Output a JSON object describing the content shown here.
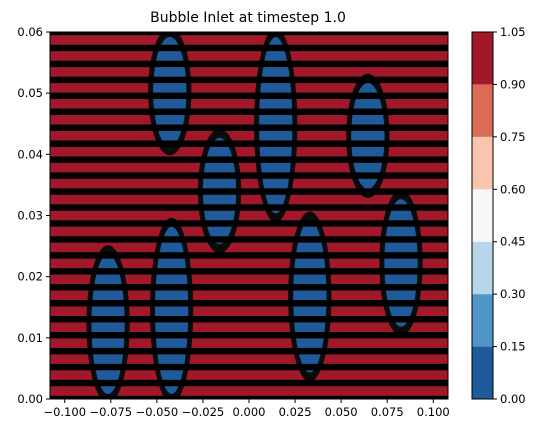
{
  "chart_data": {
    "type": "contourf",
    "title": "Bubble Inlet at timestep 1.0",
    "xlabel": "",
    "ylabel": "",
    "xlim": [
      -0.108,
      0.108
    ],
    "ylim": [
      0,
      0.06
    ],
    "x_ticks": [
      "−0.100",
      "−0.075",
      "−0.050",
      "−0.025",
      "0.000",
      "0.025",
      "0.050",
      "0.075",
      "0.100"
    ],
    "x_tick_values": [
      -0.1,
      -0.075,
      -0.05,
      -0.025,
      0.0,
      0.025,
      0.05,
      0.075,
      0.1
    ],
    "y_ticks": [
      "0.00",
      "0.01",
      "0.02",
      "0.03",
      "0.04",
      "0.05",
      "0.06"
    ],
    "y_tick_values": [
      0.0,
      0.01,
      0.02,
      0.03,
      0.04,
      0.05,
      0.06
    ],
    "grid": false,
    "colorbar": {
      "levels": [
        0.0,
        0.15,
        0.3,
        0.45,
        0.6,
        0.75,
        0.9,
        1.05
      ],
      "tick_labels": [
        "0.00",
        "0.15",
        "0.30",
        "0.45",
        "0.60",
        "0.75",
        "0.90",
        "1.05"
      ],
      "colors": [
        "#1f5a9a",
        "#4f96c6",
        "#b7d6e9",
        "#f7f7f7",
        "#fac5ad",
        "#dc6b55",
        "#a2182b"
      ]
    },
    "background_value": 1.0,
    "bubble_value": 0.0,
    "background_color": "#a2182b",
    "bubble_color": "#1f5a9a",
    "band_line_color": "#000000",
    "horizontal_band_count": 23,
    "bubbles": [
      {
        "x": -0.0765,
        "y_min": 0.0,
        "y_max": 0.0245
      },
      {
        "x": -0.042,
        "y_min": 0.0,
        "y_max": 0.029
      },
      {
        "x": -0.043,
        "y_min": 0.0405,
        "y_max": 0.06
      },
      {
        "x": -0.016,
        "y_min": 0.0245,
        "y_max": 0.0435
      },
      {
        "x": 0.0145,
        "y_min": 0.0295,
        "y_max": 0.06
      },
      {
        "x": 0.033,
        "y_min": 0.0035,
        "y_max": 0.03
      },
      {
        "x": 0.0645,
        "y_min": 0.0335,
        "y_max": 0.0525
      },
      {
        "x": 0.0825,
        "y_min": 0.011,
        "y_max": 0.0335
      }
    ]
  }
}
